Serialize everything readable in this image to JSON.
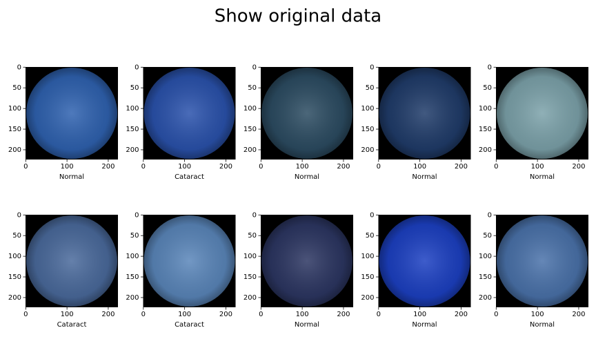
{
  "title": "Show original data",
  "chart_data": [
    {
      "type": "image",
      "xlabel": "Normal",
      "color": "#2f62b0",
      "xlim": [
        -0.5,
        223.5
      ],
      "ylim": [
        223.5,
        -0.5
      ],
      "xticks": [
        0,
        100,
        200
      ],
      "yticks": [
        0,
        50,
        100,
        150,
        200
      ]
    },
    {
      "type": "image",
      "xlabel": "Cataract",
      "color": "#2a52ac",
      "xlim": [
        -0.5,
        223.5
      ],
      "ylim": [
        223.5,
        -0.5
      ],
      "xticks": [
        0,
        100,
        200
      ],
      "yticks": [
        0,
        50,
        100,
        150,
        200
      ]
    },
    {
      "type": "image",
      "xlabel": "Normal",
      "color": "#2c4c62",
      "xlim": [
        -0.5,
        223.5
      ],
      "ylim": [
        223.5,
        -0.5
      ],
      "xticks": [
        0,
        100,
        200
      ],
      "yticks": [
        0,
        50,
        100,
        150,
        200
      ]
    },
    {
      "type": "image",
      "xlabel": "Normal",
      "color": "#203c6a",
      "xlim": [
        -0.5,
        223.5
      ],
      "ylim": [
        223.5,
        -0.5
      ],
      "xticks": [
        0,
        100,
        200
      ],
      "yticks": [
        0,
        50,
        100,
        150,
        200
      ]
    },
    {
      "type": "image",
      "xlabel": "Normal",
      "color": "#7ca2aa",
      "xlim": [
        -0.5,
        223.5
      ],
      "ylim": [
        223.5,
        -0.5
      ],
      "xticks": [
        0,
        100,
        200
      ],
      "yticks": [
        0,
        50,
        100,
        150,
        200
      ]
    },
    {
      "type": "image",
      "xlabel": "Cataract",
      "color": "#4a6a9c",
      "xlim": [
        -0.5,
        223.5
      ],
      "ylim": [
        223.5,
        -0.5
      ],
      "xticks": [
        0,
        100,
        200
      ],
      "yticks": [
        0,
        50,
        100,
        150,
        200
      ]
    },
    {
      "type": "image",
      "xlabel": "Cataract",
      "color": "#5a86ba",
      "xlim": [
        -0.5,
        223.5
      ],
      "ylim": [
        223.5,
        -0.5
      ],
      "xticks": [
        0,
        100,
        200
      ],
      "yticks": [
        0,
        50,
        100,
        150,
        200
      ]
    },
    {
      "type": "image",
      "xlabel": "Normal",
      "color": "#2c3662",
      "xlim": [
        -0.5,
        223.5
      ],
      "ylim": [
        223.5,
        -0.5
      ],
      "xticks": [
        0,
        100,
        200
      ],
      "yticks": [
        0,
        50,
        100,
        150,
        200
      ]
    },
    {
      "type": "image",
      "xlabel": "Normal",
      "color": "#1c40c2",
      "xlim": [
        -0.5,
        223.5
      ],
      "ylim": [
        223.5,
        -0.5
      ],
      "xticks": [
        0,
        100,
        200
      ],
      "yticks": [
        0,
        50,
        100,
        150,
        200
      ]
    },
    {
      "type": "image",
      "xlabel": "Normal",
      "color": "#4a72aa",
      "xlim": [
        -0.5,
        223.5
      ],
      "ylim": [
        223.5,
        -0.5
      ],
      "xticks": [
        0,
        100,
        200
      ],
      "yticks": [
        0,
        50,
        100,
        150,
        200
      ]
    }
  ]
}
